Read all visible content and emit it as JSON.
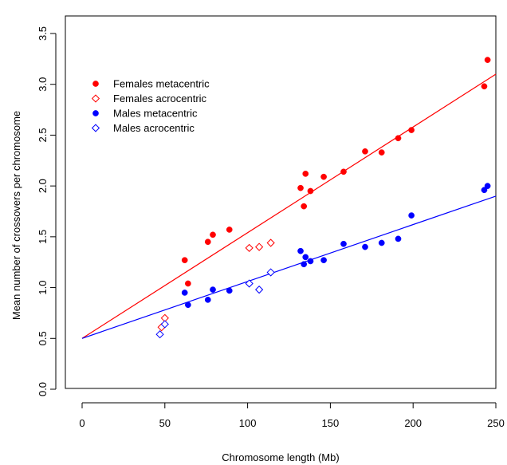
{
  "chart_data": {
    "type": "scatter",
    "title": "",
    "xlabel": "Chromosome length (Mb)",
    "ylabel": "Mean number of crossovers per chromosome",
    "xlim": [
      0,
      250
    ],
    "ylim": [
      0,
      3.5
    ],
    "xticks": [
      "0",
      "50",
      "100",
      "150",
      "200",
      "250"
    ],
    "yticks": [
      "0.0",
      "0.5",
      "1.0",
      "1.5",
      "2.0",
      "2.5",
      "3.0",
      "3.5"
    ],
    "legend_position": "top-left",
    "grid": false,
    "series": [
      {
        "name": "Females metacentric",
        "color": "#ff0000",
        "marker": "filled-circle",
        "points": [
          [
            62,
            1.27
          ],
          [
            64,
            1.04
          ],
          [
            76,
            1.45
          ],
          [
            79,
            1.52
          ],
          [
            89,
            1.57
          ],
          [
            132,
            1.98
          ],
          [
            134,
            1.8
          ],
          [
            135,
            2.12
          ],
          [
            138,
            1.95
          ],
          [
            146,
            2.09
          ],
          [
            158,
            2.14
          ],
          [
            171,
            2.34
          ],
          [
            181,
            2.33
          ],
          [
            191,
            2.47
          ],
          [
            199,
            2.55
          ],
          [
            243,
            2.98
          ],
          [
            245,
            3.24
          ]
        ]
      },
      {
        "name": "Females acrocentric",
        "color": "#ff0000",
        "marker": "open-diamond",
        "points": [
          [
            48,
            0.61
          ],
          [
            50,
            0.7
          ],
          [
            101,
            1.39
          ],
          [
            107,
            1.4
          ],
          [
            114,
            1.44
          ]
        ]
      },
      {
        "name": "Males metacentric",
        "color": "#0000ff",
        "marker": "filled-circle",
        "points": [
          [
            62,
            0.95
          ],
          [
            64,
            0.83
          ],
          [
            76,
            0.88
          ],
          [
            79,
            0.98
          ],
          [
            89,
            0.97
          ],
          [
            132,
            1.36
          ],
          [
            134,
            1.23
          ],
          [
            135,
            1.3
          ],
          [
            138,
            1.26
          ],
          [
            146,
            1.27
          ],
          [
            158,
            1.43
          ],
          [
            171,
            1.4
          ],
          [
            181,
            1.44
          ],
          [
            191,
            1.48
          ],
          [
            199,
            1.71
          ],
          [
            243,
            1.96
          ],
          [
            245,
            2.0
          ]
        ]
      },
      {
        "name": "Males acrocentric",
        "color": "#0000ff",
        "marker": "open-diamond",
        "points": [
          [
            47,
            0.54
          ],
          [
            50,
            0.64
          ],
          [
            101,
            1.04
          ],
          [
            107,
            0.98
          ],
          [
            114,
            1.15
          ]
        ]
      }
    ],
    "fit_lines": [
      {
        "color": "#ff0000",
        "x": [
          0,
          250
        ],
        "y": [
          0.5,
          3.1
        ]
      },
      {
        "color": "#0000ff",
        "x": [
          0,
          250
        ],
        "y": [
          0.5,
          1.9
        ]
      }
    ]
  }
}
